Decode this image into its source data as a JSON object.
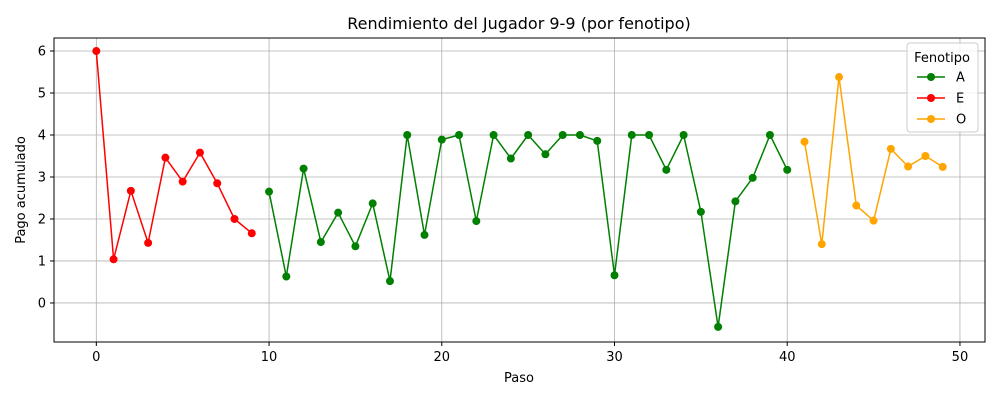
{
  "chart_data": {
    "type": "line",
    "title": "Rendimiento del Jugador 9-9 (por fenotipo)",
    "xlabel": "Paso",
    "ylabel": "Pago acumulado",
    "xlim": [
      -2.45,
      51.45
    ],
    "ylim": [
      -0.93,
      6.31
    ],
    "xticks": [
      0,
      10,
      20,
      30,
      40,
      50
    ],
    "yticks": [
      0,
      1,
      2,
      3,
      4,
      5,
      6
    ],
    "grid": true,
    "legend": {
      "title": "Fenotipo",
      "placement": "top-right"
    },
    "series": [
      {
        "name": "A",
        "color": "#008000",
        "x": [
          10,
          11,
          12,
          13,
          14,
          15,
          16,
          17,
          18,
          19,
          20,
          21,
          22,
          23,
          24,
          25,
          26,
          27,
          28,
          29,
          30,
          31,
          32,
          33,
          34,
          35,
          36,
          37,
          38,
          39,
          40
        ],
        "y": [
          2.65,
          0.63,
          3.2,
          1.45,
          2.15,
          1.35,
          2.37,
          0.52,
          4.0,
          1.62,
          3.89,
          4.0,
          1.95,
          4.0,
          3.44,
          4.0,
          3.54,
          4.0,
          4.0,
          3.86,
          0.66,
          4.0,
          4.0,
          3.17,
          4.0,
          2.17,
          -0.57,
          2.42,
          2.98,
          4.0,
          3.17
        ]
      },
      {
        "name": "E",
        "color": "#ff0000",
        "x": [
          0,
          1,
          2,
          3,
          4,
          5,
          6,
          7,
          8,
          9
        ],
        "y": [
          6.0,
          1.04,
          2.67,
          1.43,
          3.46,
          2.89,
          3.58,
          2.85,
          2.0,
          1.66
        ]
      },
      {
        "name": "O",
        "color": "#ffa500",
        "x": [
          41,
          42,
          43,
          44,
          45,
          46,
          47,
          48,
          49
        ],
        "y": [
          3.84,
          1.4,
          5.38,
          2.32,
          1.96,
          3.67,
          3.25,
          3.5,
          3.24
        ]
      }
    ]
  }
}
